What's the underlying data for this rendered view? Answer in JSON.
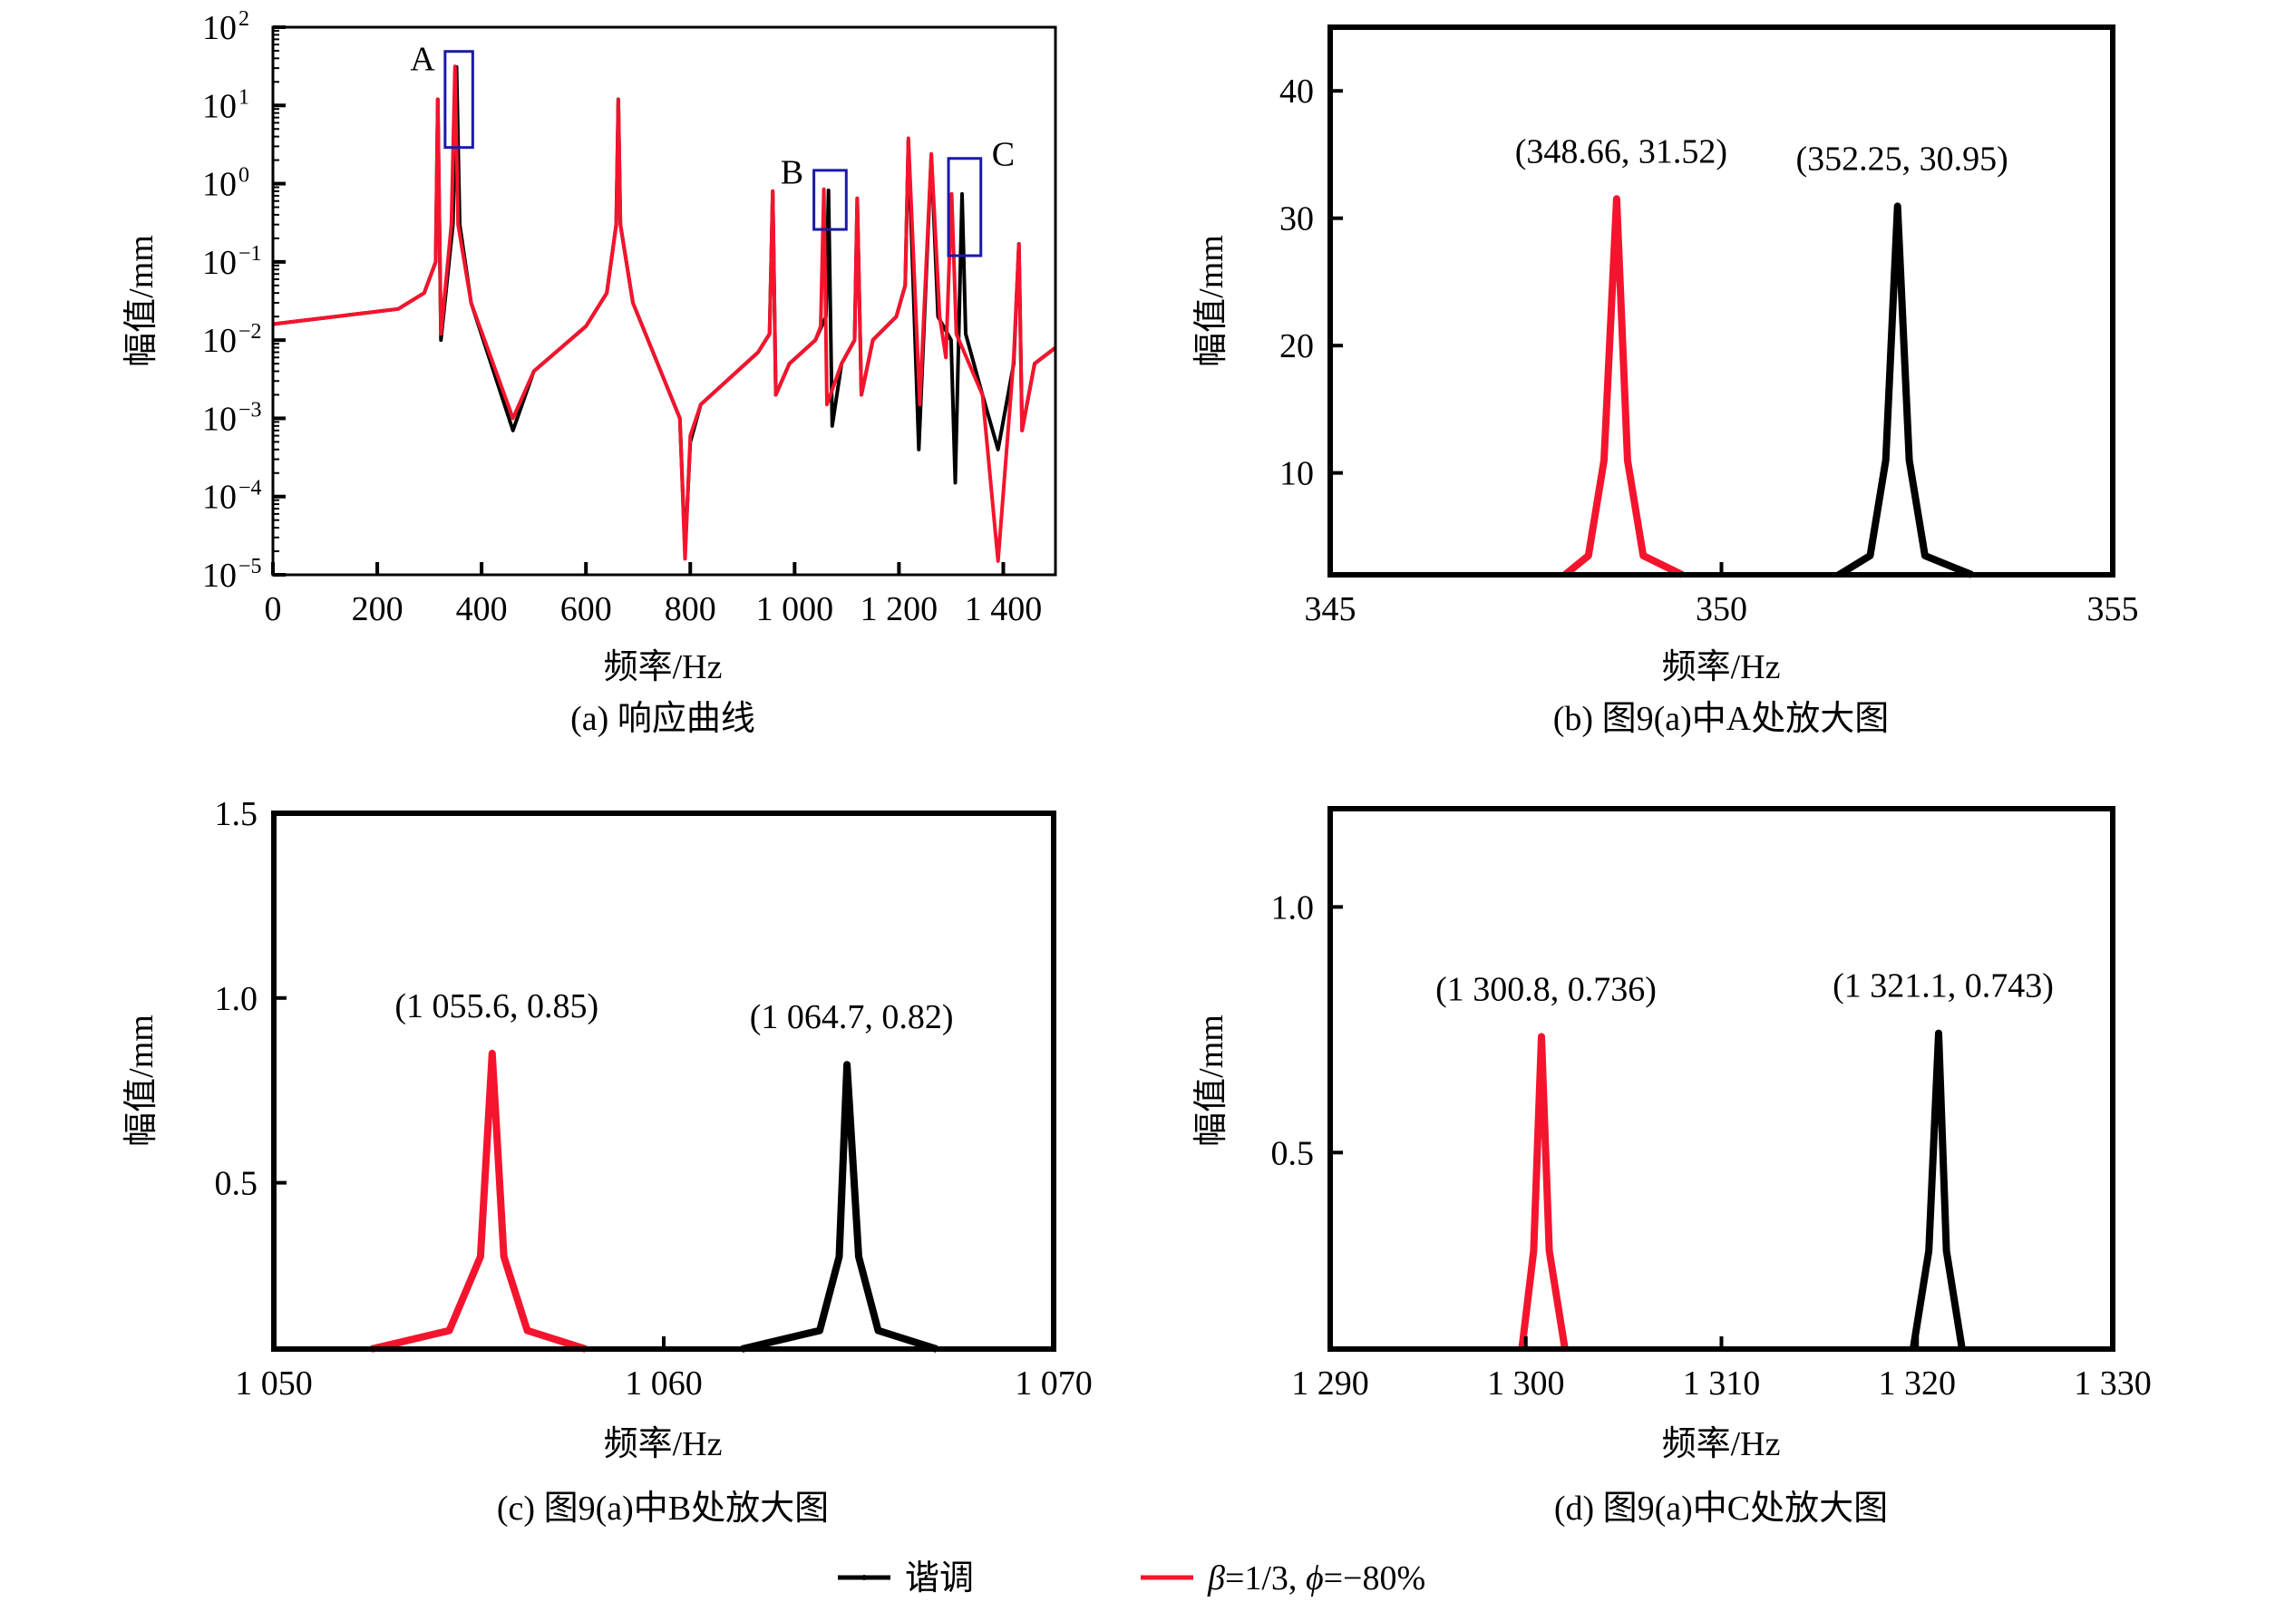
{
  "legend": {
    "placement": "bottom-center",
    "items": [
      {
        "name": "谐调",
        "color": "#000000"
      },
      {
        "name_prefix": "β",
        "name_rest": "=1/3, ",
        "name_phi": "ϕ",
        "name_tail": "=−80%",
        "name": "β=1/3, ϕ=−80%",
        "color": "#f5142d"
      }
    ]
  },
  "chart_data": [
    {
      "type": "line",
      "title": "(a) 响应曲线",
      "xlabel": "频率/Hz",
      "ylabel": "幅值/mm",
      "yscale": "log",
      "xlim": [
        0,
        1500
      ],
      "ylim": [
        1e-05,
        100
      ],
      "grid": false,
      "xticks": [
        {
          "v": 0,
          "label": "0"
        },
        {
          "v": 200,
          "label": "200"
        },
        {
          "v": 400,
          "label": "400"
        },
        {
          "v": 600,
          "label": "600"
        },
        {
          "v": 800,
          "label": "800"
        },
        {
          "v": 1000,
          "label": "1 000"
        },
        {
          "v": 1200,
          "label": "1 200"
        },
        {
          "v": 1400,
          "label": "1 400"
        }
      ],
      "yticks": [
        {
          "v": 100,
          "label": "10",
          "exp": "2"
        },
        {
          "v": 10,
          "label": "10",
          "exp": "1"
        },
        {
          "v": 1,
          "label": "10",
          "exp": "0"
        },
        {
          "v": 0.1,
          "label": "10",
          "exp": "−1"
        },
        {
          "v": 0.01,
          "label": "10",
          "exp": "−2"
        },
        {
          "v": 0.001,
          "label": "10",
          "exp": "−3"
        },
        {
          "v": 0.0001,
          "label": "10",
          "exp": "−4"
        },
        {
          "v": 1e-05,
          "label": "10",
          "exp": "−5"
        }
      ],
      "series": [
        {
          "name": "谐调",
          "color": "#000000",
          "points": [
            [
              0,
              0.016
            ],
            [
              240,
              0.025
            ],
            [
              290,
              0.04
            ],
            [
              312,
              0.1
            ],
            [
              316,
              12
            ],
            [
              322,
              0.01
            ],
            [
              345,
              0.3
            ],
            [
              352,
              31
            ],
            [
              358,
              0.3
            ],
            [
              380,
              0.03
            ],
            [
              460,
              0.0007
            ],
            [
              500,
              0.004
            ],
            [
              600,
              0.015
            ],
            [
              640,
              0.04
            ],
            [
              658,
              0.3
            ],
            [
              662,
              12
            ],
            [
              666,
              0.3
            ],
            [
              690,
              0.03
            ],
            [
              780,
              0.001
            ],
            [
              790,
              2e-05
            ],
            [
              800,
              0.0005
            ],
            [
              820,
              0.0015
            ],
            [
              930,
              0.007
            ],
            [
              952,
              0.012
            ],
            [
              958,
              0.8
            ],
            [
              964,
              0.002
            ],
            [
              990,
              0.005
            ],
            [
              1040,
              0.01
            ],
            [
              1060,
              0.02
            ],
            [
              1065,
              0.82
            ],
            [
              1072,
              0.0008
            ],
            [
              1090,
              0.005
            ],
            [
              1115,
              0.01
            ],
            [
              1120,
              0.65
            ],
            [
              1128,
              0.002
            ],
            [
              1150,
              0.01
            ],
            [
              1195,
              0.02
            ],
            [
              1212,
              0.05
            ],
            [
              1218,
              3.5
            ],
            [
              1238,
              0.0004
            ],
            [
              1262,
              2.3
            ],
            [
              1275,
              0.02
            ],
            [
              1300,
              0.01
            ],
            [
              1308,
              0.00015
            ],
            [
              1321,
              0.74
            ],
            [
              1328,
              0.012
            ],
            [
              1360,
              0.002
            ],
            [
              1390,
              0.0004
            ],
            [
              1420,
              0.005
            ],
            [
              1430,
              0.17
            ],
            [
              1436,
              0.0007
            ],
            [
              1460,
              0.005
            ],
            [
              1500,
              0.008
            ]
          ]
        },
        {
          "name": "β=1/3, ϕ=−80%",
          "color": "#f5142d",
          "points": [
            [
              0,
              0.016
            ],
            [
              240,
              0.025
            ],
            [
              290,
              0.04
            ],
            [
              312,
              0.1
            ],
            [
              316,
              12
            ],
            [
              322,
              0.012
            ],
            [
              342,
              0.3
            ],
            [
              349,
              31.5
            ],
            [
              355,
              0.3
            ],
            [
              380,
              0.03
            ],
            [
              460,
              0.001
            ],
            [
              500,
              0.004
            ],
            [
              600,
              0.015
            ],
            [
              640,
              0.04
            ],
            [
              658,
              0.3
            ],
            [
              662,
              12
            ],
            [
              666,
              0.3
            ],
            [
              690,
              0.03
            ],
            [
              780,
              0.001
            ],
            [
              790,
              1.6e-05
            ],
            [
              800,
              0.0006
            ],
            [
              820,
              0.0015
            ],
            [
              930,
              0.007
            ],
            [
              952,
              0.012
            ],
            [
              958,
              0.8
            ],
            [
              964,
              0.002
            ],
            [
              990,
              0.005
            ],
            [
              1040,
              0.01
            ],
            [
              1050,
              0.015
            ],
            [
              1056,
              0.85
            ],
            [
              1062,
              0.0015
            ],
            [
              1090,
              0.005
            ],
            [
              1115,
              0.01
            ],
            [
              1120,
              0.65
            ],
            [
              1128,
              0.002
            ],
            [
              1150,
              0.01
            ],
            [
              1195,
              0.02
            ],
            [
              1212,
              0.05
            ],
            [
              1218,
              3.8
            ],
            [
              1240,
              0.0015
            ],
            [
              1262,
              2.4
            ],
            [
              1278,
              0.02
            ],
            [
              1290,
              0.006
            ],
            [
              1301,
              0.74
            ],
            [
              1310,
              0.012
            ],
            [
              1360,
              0.002
            ],
            [
              1390,
              1.5e-05
            ],
            [
              1420,
              0.006
            ],
            [
              1430,
              0.17
            ],
            [
              1436,
              0.0007
            ],
            [
              1460,
              0.005
            ],
            [
              1500,
              0.008
            ]
          ]
        }
      ],
      "boxes": [
        {
          "label": "A",
          "x": [
            330,
            383
          ],
          "y": [
            2.9,
            49
          ],
          "color": "#1a1aa8",
          "label_at": [
            287,
            28
          ]
        },
        {
          "label": "B",
          "x": [
            1037,
            1099
          ],
          "y": [
            0.26,
            1.48
          ],
          "color": "#1a1aa8",
          "label_at": [
            995,
            1.0
          ]
        },
        {
          "label": "C",
          "x": [
            1295,
            1357
          ],
          "y": [
            0.12,
            2.1
          ],
          "color": "#1a1aa8",
          "label_at": [
            1400,
            1.7
          ]
        }
      ]
    },
    {
      "type": "line",
      "title": "(b) 图9(a)中A处放大图",
      "xlabel": "频率/Hz",
      "ylabel": "幅值/mm",
      "yscale": "linear",
      "xlim": [
        345,
        355
      ],
      "ylim": [
        2,
        45
      ],
      "grid": false,
      "xticks": [
        {
          "v": 345,
          "label": "345"
        },
        {
          "v": 350,
          "label": "350"
        },
        {
          "v": 355,
          "label": "355"
        }
      ],
      "yticks": [
        {
          "v": 10,
          "label": "10"
        },
        {
          "v": 20,
          "label": "20"
        },
        {
          "v": 30,
          "label": "30"
        },
        {
          "v": 40,
          "label": "40"
        }
      ],
      "series": [
        {
          "name": "谐调",
          "color": "#000000",
          "points": [
            [
              351.5,
              2
            ],
            [
              351.9,
              3.5
            ],
            [
              352.1,
              11
            ],
            [
              352.25,
              30.95
            ],
            [
              352.4,
              11
            ],
            [
              352.6,
              3.5
            ],
            [
              353.2,
              2
            ]
          ]
        },
        {
          "name": "β=1/3, ϕ=−80%",
          "color": "#f5142d",
          "points": [
            [
              348.0,
              2
            ],
            [
              348.3,
              3.5
            ],
            [
              348.5,
              11
            ],
            [
              348.66,
              31.52
            ],
            [
              348.8,
              11
            ],
            [
              349.0,
              3.5
            ],
            [
              349.5,
              2
            ]
          ]
        }
      ],
      "annotations": [
        {
          "text": "(348.66, 31.52)",
          "x": 348.66,
          "y": 31.52
        },
        {
          "text": "(352.25, 30.95)",
          "x": 352.25,
          "y": 30.95
        }
      ]
    },
    {
      "type": "line",
      "title": "(c) 图9(a)中B处放大图",
      "xlabel": "频率/Hz",
      "ylabel": "幅值/mm",
      "yscale": "linear",
      "xlim": [
        1050,
        1070
      ],
      "ylim": [
        0.05,
        1.5
      ],
      "grid": false,
      "xticks": [
        {
          "v": 1050,
          "label": "1 050"
        },
        {
          "v": 1060,
          "label": "1 060"
        },
        {
          "v": 1070,
          "label": "1 070"
        }
      ],
      "yticks": [
        {
          "v": 0.5,
          "label": "0.5"
        },
        {
          "v": 1.0,
          "label": "1.0"
        },
        {
          "v": 1.5,
          "label": "1.5"
        }
      ],
      "series": [
        {
          "name": "谐调",
          "color": "#000000",
          "points": [
            [
              1062,
              0.05
            ],
            [
              1064,
              0.1
            ],
            [
              1064.5,
              0.3
            ],
            [
              1064.7,
              0.82
            ],
            [
              1065,
              0.3
            ],
            [
              1065.5,
              0.1
            ],
            [
              1067,
              0.05
            ]
          ]
        },
        {
          "name": "β=1/3, ϕ=−80%",
          "color": "#f5142d",
          "points": [
            [
              1052.5,
              0.05
            ],
            [
              1054.5,
              0.1
            ],
            [
              1055.3,
              0.3
            ],
            [
              1055.6,
              0.85
            ],
            [
              1055.9,
              0.3
            ],
            [
              1056.5,
              0.1
            ],
            [
              1058,
              0.05
            ]
          ]
        }
      ],
      "annotations": [
        {
          "text": "(1 055.6, 0.85)",
          "x": 1055.6,
          "y": 0.85
        },
        {
          "text": "(1 064.7, 0.82)",
          "x": 1064.7,
          "y": 0.82
        }
      ]
    },
    {
      "type": "line",
      "title": "(d) 图9(a)中C处放大图",
      "xlabel": "频率/Hz",
      "ylabel": "幅值/mm",
      "yscale": "linear",
      "xlim": [
        1290,
        1330
      ],
      "ylim": [
        0.1,
        1.2
      ],
      "grid": false,
      "xticks": [
        {
          "v": 1290,
          "label": "1 290"
        },
        {
          "v": 1300,
          "label": "1 300"
        },
        {
          "v": 1310,
          "label": "1 310"
        },
        {
          "v": 1320,
          "label": "1 320"
        },
        {
          "v": 1330,
          "label": "1 330"
        }
      ],
      "yticks": [
        {
          "v": 0.5,
          "label": "0.5"
        },
        {
          "v": 1.0,
          "label": "1.0"
        }
      ],
      "series": [
        {
          "name": "谐调",
          "color": "#000000",
          "points": [
            [
              1319.8,
              0.1
            ],
            [
              1320.6,
              0.3
            ],
            [
              1321.1,
              0.743
            ],
            [
              1321.5,
              0.3
            ],
            [
              1322.3,
              0.1
            ]
          ]
        },
        {
          "name": "β=1/3, ϕ=−80%",
          "color": "#f5142d",
          "points": [
            [
              1299.8,
              0.1
            ],
            [
              1300.4,
              0.3
            ],
            [
              1300.8,
              0.736
            ],
            [
              1301.2,
              0.3
            ],
            [
              1302,
              0.1
            ]
          ]
        }
      ],
      "annotations": [
        {
          "text": "(1 300.8, 0.736)",
          "x": 1300.8,
          "y": 0.736
        },
        {
          "text": "(1 321.1, 0.743)",
          "x": 1321.1,
          "y": 0.743
        }
      ]
    }
  ]
}
